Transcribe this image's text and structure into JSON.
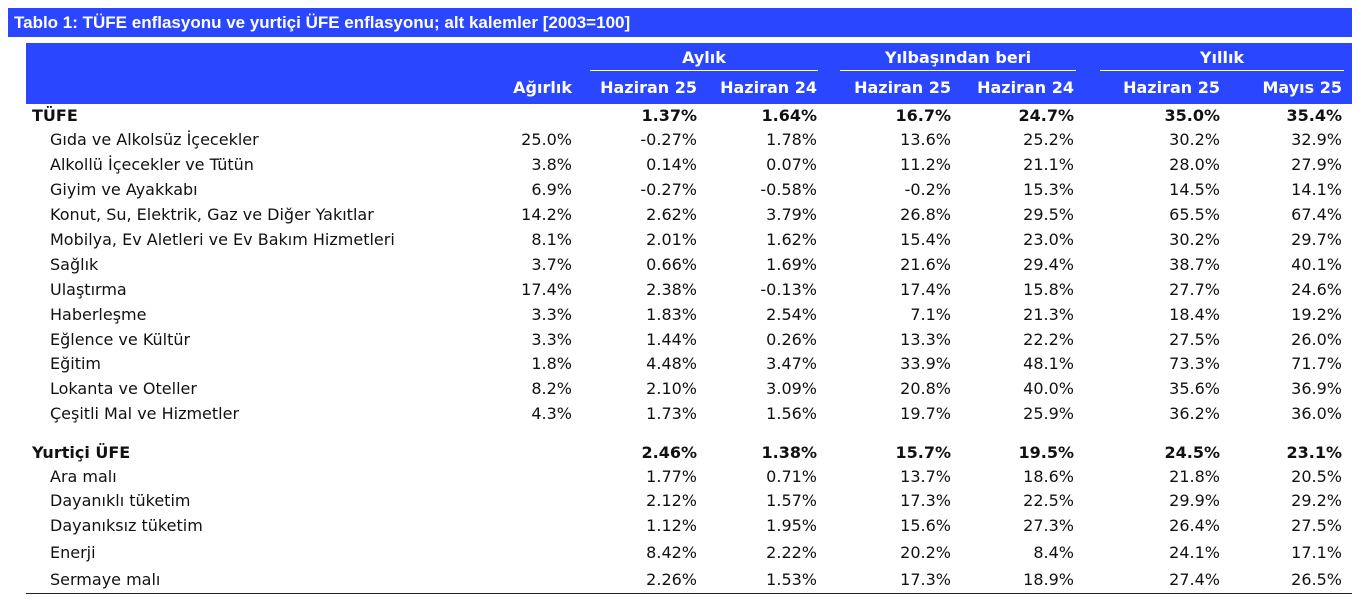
{
  "title": "Tablo 1: TÜFE enflasyonu ve yurtiçi ÜFE enflasyonu; alt kalemler [2003=100]",
  "groups": [
    "Aylık",
    "Yılbaşından beri",
    "Yıllık"
  ],
  "columns": [
    "Ağırlık",
    "Haziran 25",
    "Haziran 24",
    "Haziran 25",
    "Haziran 24",
    "Haziran 25",
    "Mayıs 25"
  ],
  "rows": [
    {
      "label": "TÜFE",
      "bold": true,
      "values": [
        "",
        "1.37%",
        "1.64%",
        "16.7%",
        "24.7%",
        "35.0%",
        "35.4%"
      ]
    },
    {
      "label": "Gıda ve Alkolsüz İçecekler",
      "bold": false,
      "values": [
        "25.0%",
        "-0.27%",
        "1.78%",
        "13.6%",
        "25.2%",
        "30.2%",
        "32.9%"
      ]
    },
    {
      "label": "Alkollü İçecekler ve Tütün",
      "bold": false,
      "values": [
        "3.8%",
        "0.14%",
        "0.07%",
        "11.2%",
        "21.1%",
        "28.0%",
        "27.9%"
      ]
    },
    {
      "label": "Giyim ve Ayakkabı",
      "bold": false,
      "values": [
        "6.9%",
        "-0.27%",
        "-0.58%",
        "-0.2%",
        "15.3%",
        "14.5%",
        "14.1%"
      ]
    },
    {
      "label": "Konut, Su, Elektrik, Gaz ve Diğer Yakıtlar",
      "bold": false,
      "values": [
        "14.2%",
        "2.62%",
        "3.79%",
        "26.8%",
        "29.5%",
        "65.5%",
        "67.4%"
      ]
    },
    {
      "label": "Mobilya, Ev Aletleri ve Ev Bakım Hizmetleri",
      "bold": false,
      "values": [
        "8.1%",
        "2.01%",
        "1.62%",
        "15.4%",
        "23.0%",
        "30.2%",
        "29.7%"
      ]
    },
    {
      "label": "Sağlık",
      "bold": false,
      "values": [
        "3.7%",
        "0.66%",
        "1.69%",
        "21.6%",
        "29.4%",
        "38.7%",
        "40.1%"
      ]
    },
    {
      "label": "Ulaştırma",
      "bold": false,
      "values": [
        "17.4%",
        "2.38%",
        "-0.13%",
        "17.4%",
        "15.8%",
        "27.7%",
        "24.6%"
      ]
    },
    {
      "label": "Haberleşme",
      "bold": false,
      "values": [
        "3.3%",
        "1.83%",
        "2.54%",
        "7.1%",
        "21.3%",
        "18.4%",
        "19.2%"
      ]
    },
    {
      "label": "Eğlence ve Kültür",
      "bold": false,
      "values": [
        "3.3%",
        "1.44%",
        "0.26%",
        "13.3%",
        "22.2%",
        "27.5%",
        "26.0%"
      ]
    },
    {
      "label": "Eğitim",
      "bold": false,
      "values": [
        "1.8%",
        "4.48%",
        "3.47%",
        "33.9%",
        "48.1%",
        "73.3%",
        "71.7%"
      ]
    },
    {
      "label": "Lokanta ve Oteller",
      "bold": false,
      "values": [
        "8.2%",
        "2.10%",
        "3.09%",
        "20.8%",
        "40.0%",
        "35.6%",
        "36.9%"
      ]
    },
    {
      "label": "Çeşitli Mal ve Hizmetler",
      "bold": false,
      "values": [
        "4.3%",
        "1.73%",
        "1.56%",
        "19.7%",
        "25.9%",
        "36.2%",
        "36.0%"
      ]
    },
    {
      "label": "Yurtiçi ÜFE",
      "bold": true,
      "values": [
        "",
        "2.46%",
        "1.38%",
        "15.7%",
        "19.5%",
        "24.5%",
        "23.1%"
      ]
    },
    {
      "label": "Ara malı",
      "bold": false,
      "values": [
        "",
        "1.77%",
        "0.71%",
        "13.7%",
        "18.6%",
        "21.8%",
        "20.5%"
      ]
    },
    {
      "label": "Dayanıklı tüketim",
      "bold": false,
      "values": [
        "",
        "2.12%",
        "1.57%",
        "17.3%",
        "22.5%",
        "29.9%",
        "29.2%"
      ]
    },
    {
      "label": "Dayanıksız tüketim",
      "bold": false,
      "values": [
        "",
        "1.12%",
        "1.95%",
        "15.6%",
        "27.3%",
        "26.4%",
        "27.5%"
      ]
    },
    {
      "label": "Enerji",
      "bold": false,
      "values": [
        "",
        "8.42%",
        "2.22%",
        "20.2%",
        "8.4%",
        "24.1%",
        "17.1%"
      ]
    },
    {
      "label": "Sermaye malı",
      "bold": false,
      "values": [
        "",
        "2.26%",
        "1.53%",
        "17.3%",
        "18.9%",
        "27.4%",
        "26.5%"
      ]
    }
  ]
}
